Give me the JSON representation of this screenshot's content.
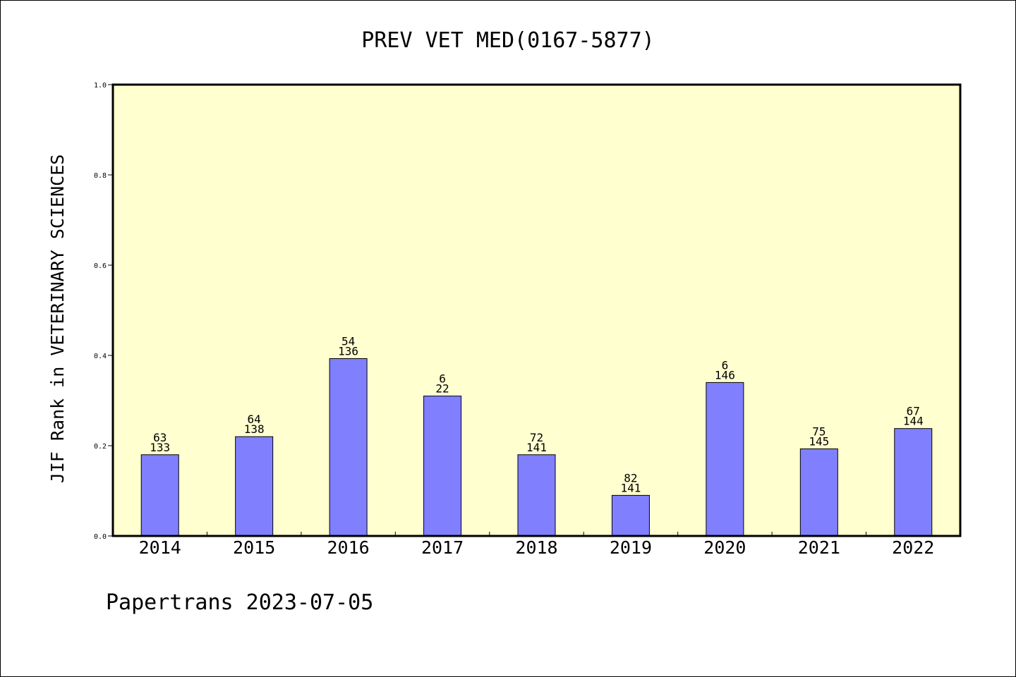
{
  "chart_data": {
    "type": "bar",
    "title": "PREV VET MED(0167-5877)",
    "xlabel": "",
    "ylabel": "JIF Rank in VETERINARY SCIENCES",
    "ylim": [
      0,
      1.0
    ],
    "yticks": [
      "0.0",
      "0.2",
      "0.4",
      "0.6",
      "0.8",
      "1.0"
    ],
    "categories": [
      "2014",
      "2015",
      "2016",
      "2017",
      "2018",
      "2019",
      "2020",
      "2021",
      "2022"
    ],
    "values": [
      0.18,
      0.22,
      0.393,
      0.31,
      0.18,
      0.09,
      0.34,
      0.193,
      0.238
    ],
    "labels_top": [
      "63",
      "64",
      "54",
      "6",
      "72",
      "82",
      "6",
      "75",
      "67"
    ],
    "labels_bottom": [
      "133",
      "138",
      "136",
      "22",
      "141",
      "141",
      "146",
      "145",
      "144"
    ],
    "bar_color": "#8080ff",
    "plot_background": "#ffffd0",
    "grid": false,
    "legend": "none"
  },
  "footer": "Papertrans 2023-07-05"
}
